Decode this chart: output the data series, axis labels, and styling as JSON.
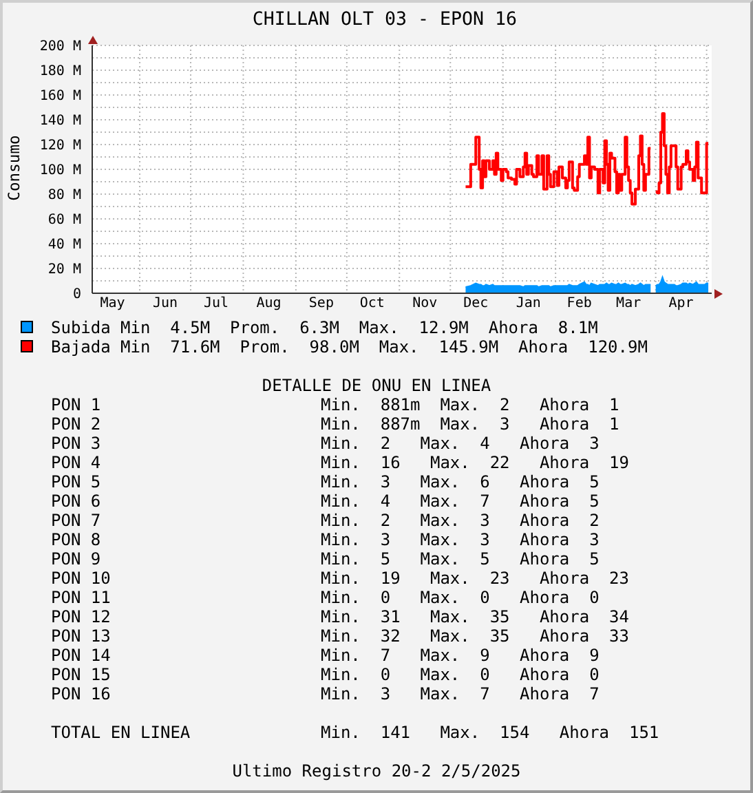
{
  "chart_data": {
    "type": "step",
    "title": "CHILLAN OLT 03 - EPON 16",
    "ylabel": "Consumo",
    "xlim": [
      "2024-05-04",
      "2025-05-04"
    ],
    "xticks": [
      {
        "value": "2024-05-16",
        "label": "May"
      },
      {
        "value": "2024-06-01",
        "label": null
      },
      {
        "value": "2024-06-16",
        "label": "Jun"
      },
      {
        "value": "2024-07-01",
        "label": null
      },
      {
        "value": "2024-07-16",
        "label": "Jul"
      },
      {
        "value": "2024-08-01",
        "label": null
      },
      {
        "value": "2024-08-16",
        "label": "Aug"
      },
      {
        "value": "2024-09-01",
        "label": null
      },
      {
        "value": "2024-09-16",
        "label": "Sep"
      },
      {
        "value": "2024-10-01",
        "label": null
      },
      {
        "value": "2024-10-16",
        "label": "Oct"
      },
      {
        "value": "2024-11-01",
        "label": null
      },
      {
        "value": "2024-11-16",
        "label": "Nov"
      },
      {
        "value": "2024-12-01",
        "label": null
      },
      {
        "value": "2024-12-16",
        "label": "Dec"
      },
      {
        "value": "2025-01-01",
        "label": null
      },
      {
        "value": "2025-01-16",
        "label": "Jan"
      },
      {
        "value": "2025-02-01",
        "label": null
      },
      {
        "value": "2025-02-15",
        "label": "Feb"
      },
      {
        "value": "2025-03-01",
        "label": null
      },
      {
        "value": "2025-03-16",
        "label": "Mar"
      },
      {
        "value": "2025-04-01",
        "label": null
      },
      {
        "value": "2025-04-16",
        "label": "Apr"
      },
      {
        "value": "2025-05-01",
        "label": null
      }
    ],
    "ylim": [
      0,
      200
    ],
    "yticks": [
      0,
      {
        "value": 10,
        "label": null
      },
      {
        "value": 20,
        "label": "20 M"
      },
      {
        "value": 30,
        "label": null
      },
      {
        "value": 40,
        "label": "40 M"
      },
      {
        "value": 50,
        "label": null
      },
      {
        "value": 60,
        "label": "60 M"
      },
      {
        "value": 70,
        "label": null
      },
      {
        "value": 80,
        "label": "80 M"
      },
      {
        "value": 90,
        "label": null
      },
      {
        "value": 100,
        "label": "100 M"
      },
      {
        "value": 110,
        "label": null
      },
      {
        "value": 120,
        "label": "120 M"
      },
      {
        "value": 130,
        "label": null
      },
      {
        "value": 140,
        "label": "140 M"
      },
      {
        "value": 150,
        "label": null
      },
      {
        "value": 160,
        "label": "160 M"
      },
      {
        "value": 170,
        "label": null
      },
      {
        "value": 180,
        "label": "180 M"
      },
      {
        "value": 190,
        "label": null
      },
      {
        "value": 200,
        "label": "200 M"
      }
    ],
    "grid": true,
    "legend": "bottom left",
    "x": [
      "2024-12-10",
      "2024-12-13",
      "2024-12-16",
      "2024-12-18",
      "2024-12-19",
      "2024-12-20",
      "2024-12-21",
      "2024-12-22",
      "2024-12-24",
      "2024-12-26",
      "2024-12-27",
      "2024-12-28",
      "2024-12-29",
      "2024-12-31",
      "2025-01-01",
      "2025-01-03",
      "2025-01-04",
      "2025-01-06",
      "2025-01-08",
      "2025-01-09",
      "2025-01-11",
      "2025-01-13",
      "2025-01-14",
      "2025-01-15",
      "2025-01-16",
      "2025-01-18",
      "2025-01-19",
      "2025-01-21",
      "2025-01-22",
      "2025-01-24",
      "2025-01-25",
      "2025-01-27",
      "2025-01-28",
      "2025-01-29",
      "2025-01-31",
      "2025-02-02",
      "2025-02-03",
      "2025-02-05",
      "2025-02-07",
      "2025-02-08",
      "2025-02-09",
      "2025-02-11",
      "2025-02-12",
      "2025-02-14",
      "2025-02-15",
      "2025-02-18",
      "2025-02-19",
      "2025-02-20",
      "2025-02-21",
      "2025-02-22",
      "2025-02-24",
      "2025-02-26",
      "2025-02-27",
      "2025-03-01",
      "2025-03-02",
      "2025-03-03",
      "2025-03-04",
      "2025-03-05",
      "2025-03-06",
      "2025-03-08",
      "2025-03-09",
      "2025-03-10",
      "2025-03-11",
      "2025-03-12",
      "2025-03-14",
      "2025-03-15",
      "2025-03-16",
      "2025-03-17",
      "2025-03-18",
      "2025-03-20",
      "2025-03-22",
      "2025-03-23",
      "2025-03-24",
      "2025-03-25",
      "2025-03-26",
      "2025-03-28",
      "2025-03-29",
      "2025-03-31",
      "2025-04-01",
      "2025-04-02",
      "2025-04-03",
      "2025-04-04",
      "2025-04-05",
      "2025-04-06",
      "2025-04-07",
      "2025-04-08",
      "2025-04-09",
      "2025-04-10",
      "2025-04-12",
      "2025-04-13",
      "2025-04-14",
      "2025-04-16",
      "2025-04-17",
      "2025-04-19",
      "2025-04-20",
      "2025-04-21",
      "2025-04-23",
      "2025-04-24",
      "2025-04-25",
      "2025-04-26",
      "2025-04-28",
      "2025-04-30",
      "2025-05-01",
      "2025-05-02"
    ],
    "series": [
      {
        "name": "Subida",
        "type": "area",
        "color": "#0096ff",
        "values": [
          5,
          6,
          8,
          7,
          7,
          6,
          6,
          7,
          6,
          7,
          6,
          6,
          6,
          6,
          6,
          6,
          6,
          6,
          6,
          6,
          6,
          5,
          6,
          6,
          6,
          6,
          6,
          6,
          5,
          6,
          6,
          6,
          6,
          5,
          6,
          6,
          6,
          6,
          6,
          6,
          7,
          6,
          6,
          6,
          7,
          9,
          7,
          7,
          6,
          8,
          7,
          6,
          7,
          7,
          7,
          8,
          7,
          7,
          8,
          7,
          7,
          8,
          7,
          7,
          8,
          7,
          7,
          6,
          7,
          6,
          7,
          8,
          7,
          6,
          7,
          7,
          7,
          null,
          6,
          7,
          7,
          9,
          13,
          9,
          8,
          7,
          7,
          7,
          7,
          6,
          6,
          7,
          8,
          8,
          7,
          8,
          7,
          8,
          9,
          7,
          7,
          7,
          8,
          8
        ]
      },
      {
        "name": "Bajada",
        "color": "#ff0000",
        "values": [
          86,
          104,
          126,
          100,
          85,
          107,
          94,
          107,
          100,
          107,
          96,
          113,
          100,
          91,
          100,
          98,
          93,
          92,
          88,
          100,
          94,
          102,
          113,
          96,
          103,
          96,
          94,
          111,
          96,
          111,
          84,
          111,
          96,
          86,
          98,
          87,
          102,
          93,
          85,
          91,
          106,
          85,
          83,
          94,
          104,
          111,
          104,
          126,
          93,
          102,
          100,
          81,
          100,
          89,
          123,
          104,
          83,
          113,
          109,
          98,
          81,
          96,
          83,
          96,
          126,
          102,
          91,
          81,
          72,
          84,
          111,
          127,
          104,
          83,
          96,
          117,
          117,
          null,
          82,
          81,
          89,
          130,
          145,
          119,
          96,
          81,
          102,
          119,
          119,
          102,
          84,
          102,
          104,
          115,
          106,
          100,
          91,
          102,
          122,
          93,
          81,
          81,
          121,
          121
        ]
      }
    ],
    "annotations": [
      "Min  4.5M  Prom.  6.3M  Max.  12.9M  Ahora  8.1M",
      "Min  71.6M  Prom.  98.0M  Max.  145.9M  Ahora  120.9M",
      "DETALLE DE ONU EN LINEA",
      "PON 1",
      "Min.  881m  Max.  2   Ahora  1",
      "PON 2",
      "Min.  887m  Max.  3   Ahora  1",
      "PON 3",
      "Min.  2   Max.  4   Ahora  3",
      "PON 4",
      "Min.  16   Max.  22   Ahora  19",
      "PON 5",
      "Min.  3   Max.  6   Ahora  5",
      "PON 6",
      "Min.  4   Max.  7   Ahora  5",
      "PON 7",
      "Min.  2   Max.  3   Ahora  2",
      "PON 8",
      "Min.  3   Max.  3   Ahora  3",
      "PON 9",
      "Min.  5   Max.  5   Ahora  5",
      "PON 10",
      "Min.  19   Max.  23   Ahora  23",
      "PON 11",
      "Min.  0   Max.  0   Ahora  0",
      "PON 12",
      "Min.  31   Max.  35   Ahora  34",
      "PON 13",
      "Min.  32   Max.  35   Ahora  33",
      "PON 14",
      "Min.  7   Max.  9   Ahora  9",
      "PON 15",
      "Min.  0   Max.  0   Ahora  0",
      "PON 16",
      "Min.  3   Max.  7   Ahora  7",
      "TOTAL EN LINEA",
      "Min.  141   Max.  154   Ahora  151",
      "Ultimo Registro 20-2 2/5/2025"
    ]
  }
}
